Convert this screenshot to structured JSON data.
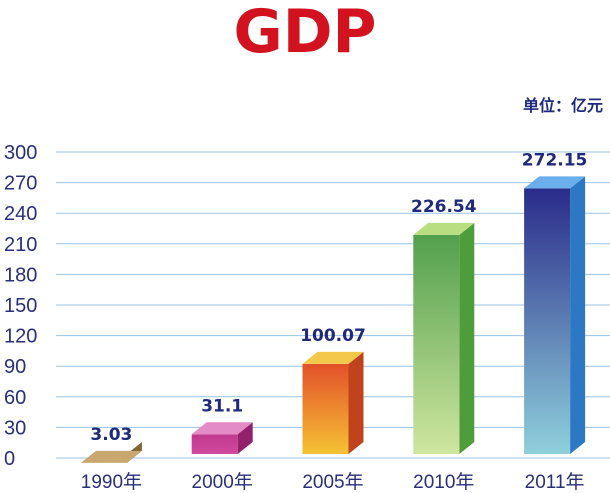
{
  "chart_data": {
    "type": "bar",
    "title": "GDP",
    "unit_label": "单位：亿元",
    "categories": [
      "1990年",
      "2000年",
      "2005年",
      "2010年",
      "2011年"
    ],
    "values": [
      3.03,
      31.1,
      100.07,
      226.54,
      272.15
    ],
    "value_labels": [
      "3.03",
      "31.1",
      "100.07",
      "226.54",
      "272.15"
    ],
    "yticks": [
      "0",
      "30",
      "60",
      "90",
      "120",
      "150",
      "180",
      "210",
      "240",
      "270",
      "300"
    ],
    "ylim": [
      0,
      300
    ],
    "grid": true,
    "colors": {
      "title": "#d2121e",
      "text": "#1f2a7a",
      "grid": "#9cc3e6",
      "bars": [
        {
          "top": "#c9a870",
          "front": [
            "#a88a50",
            "#a88a50"
          ],
          "side": "#7d6534"
        },
        {
          "top": "#e38bc6",
          "front": [
            "#c0398f",
            "#d14aa0"
          ],
          "side": "#93206a"
        },
        {
          "top": "#f2c94a",
          "front": [
            "#e3502a",
            "#f5c233"
          ],
          "side": "#c0431e"
        },
        {
          "top": "#b8de80",
          "front": [
            "#52a04c",
            "#cfe6a0"
          ],
          "side": "#4e9c3a"
        },
        {
          "top": "#6aaeec",
          "front": [
            "#2a2b8a",
            "#8fd0dc"
          ],
          "side": "#2c78c4"
        }
      ]
    }
  }
}
